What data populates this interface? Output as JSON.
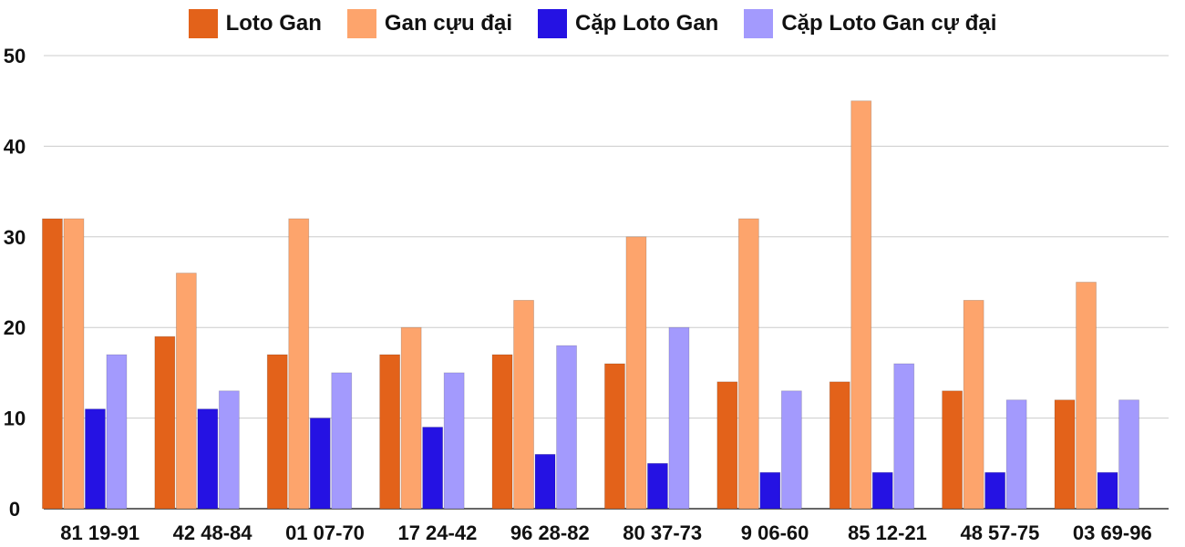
{
  "chart_data": {
    "type": "bar",
    "categories": [
      "81 19-91",
      "42 48-84",
      "01 07-70",
      "17 24-42",
      "96 28-82",
      "80 37-73",
      "9 06-60",
      "85 12-21",
      "48 57-75",
      "03 69-96"
    ],
    "series": [
      {
        "name": "Loto Gan",
        "color": "#e3621a",
        "values": [
          32,
          19,
          17,
          17,
          17,
          16,
          14,
          14,
          13,
          12
        ]
      },
      {
        "name": "Gan cựu đại",
        "color": "#fda46c",
        "values": [
          32,
          26,
          32,
          20,
          23,
          30,
          32,
          45,
          23,
          25
        ]
      },
      {
        "name": "Cặp Loto Gan",
        "color": "#2512e3",
        "values": [
          11,
          11,
          10,
          9,
          6,
          5,
          4,
          4,
          4,
          4
        ]
      },
      {
        "name": "Cặp Loto Gan cự đại",
        "color": "#a39afd",
        "values": [
          17,
          13,
          15,
          15,
          18,
          20,
          13,
          16,
          12,
          12
        ]
      }
    ],
    "ylim": [
      0,
      50
    ],
    "yticks": [
      0,
      10,
      20,
      30,
      40,
      50
    ],
    "grid": true,
    "legend_position": "top-center",
    "title": "",
    "xlabel": "",
    "ylabel": ""
  }
}
